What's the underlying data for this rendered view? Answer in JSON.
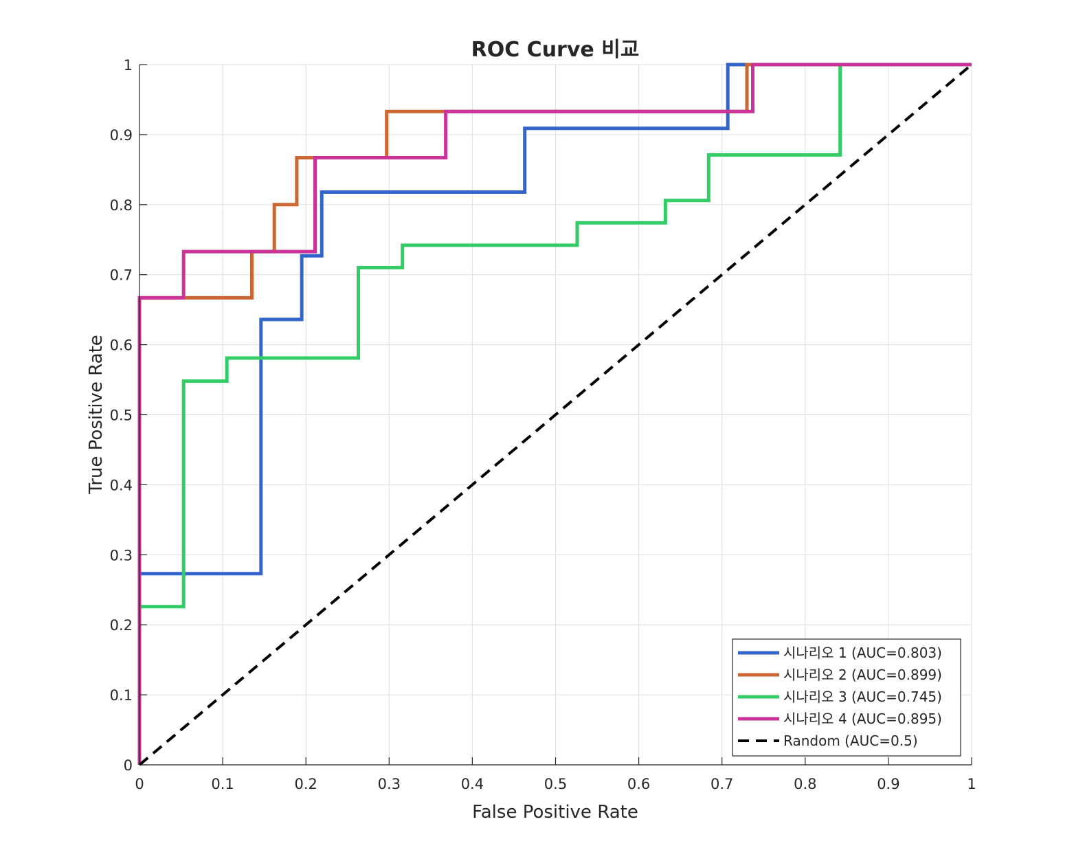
{
  "chart_data": {
    "type": "line",
    "title": "ROC Curve 비교",
    "xlabel": "False Positive Rate",
    "ylabel": "True Positive Rate",
    "xlim": [
      0,
      1
    ],
    "ylim": [
      0,
      1
    ],
    "grid": true,
    "legend_position": "bottom-right",
    "xticks": [
      "0",
      "0.1",
      "0.2",
      "0.3",
      "0.4",
      "0.5",
      "0.6",
      "0.7",
      "0.8",
      "0.9",
      "1"
    ],
    "yticks": [
      "0",
      "0.1",
      "0.2",
      "0.3",
      "0.4",
      "0.5",
      "0.6",
      "0.7",
      "0.8",
      "0.9",
      "1"
    ],
    "series": [
      {
        "name": "시나리오 1 (AUC=0.803)",
        "color": "#3366cc",
        "x": [
          0,
          0,
          0.146,
          0.146,
          0.195,
          0.195,
          0.219,
          0.219,
          0.463,
          0.463,
          0.707,
          0.707,
          1
        ],
        "y": [
          0,
          0.273,
          0.273,
          0.636,
          0.636,
          0.727,
          0.727,
          0.818,
          0.818,
          0.909,
          0.909,
          1,
          1
        ]
      },
      {
        "name": "시나리오 2 (AUC=0.899)",
        "color": "#cc6633",
        "x": [
          0,
          0,
          0.135,
          0.135,
          0.162,
          0.162,
          0.189,
          0.189,
          0.297,
          0.297,
          0.73,
          0.73,
          1
        ],
        "y": [
          0,
          0.667,
          0.667,
          0.733,
          0.733,
          0.8,
          0.8,
          0.867,
          0.867,
          0.933,
          0.933,
          1,
          1
        ]
      },
      {
        "name": "시나리오 3 (AUC=0.745)",
        "color": "#33cc66",
        "x": [
          0,
          0,
          0.053,
          0.053,
          0.105,
          0.105,
          0.263,
          0.263,
          0.316,
          0.316,
          0.526,
          0.526,
          0.632,
          0.632,
          0.684,
          0.684,
          0.842,
          0.842,
          1
        ],
        "y": [
          0,
          0.226,
          0.226,
          0.548,
          0.548,
          0.581,
          0.581,
          0.71,
          0.71,
          0.742,
          0.742,
          0.774,
          0.774,
          0.806,
          0.806,
          0.871,
          0.871,
          1,
          1
        ]
      },
      {
        "name": "시나리오 4 (AUC=0.895)",
        "color": "#cc3399",
        "x": [
          0,
          0,
          0.053,
          0.053,
          0.211,
          0.211,
          0.368,
          0.368,
          0.737,
          0.737,
          1
        ],
        "y": [
          0,
          0.667,
          0.667,
          0.733,
          0.733,
          0.867,
          0.867,
          0.933,
          0.933,
          1,
          1
        ]
      },
      {
        "name": "Random (AUC=0.5)",
        "color": "#000000",
        "dashed": true,
        "x": [
          0,
          1
        ],
        "y": [
          0,
          1
        ]
      }
    ]
  }
}
